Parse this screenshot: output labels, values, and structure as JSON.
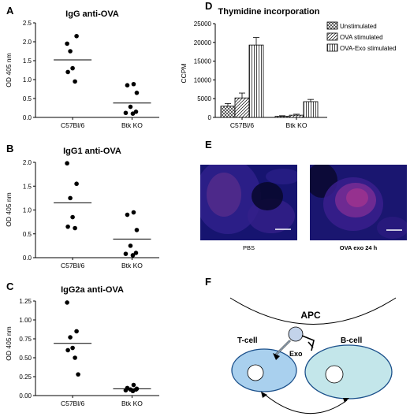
{
  "chart_data": [
    {
      "id": "A",
      "type": "scatter",
      "title": "IgG anti-OVA",
      "ylabel": "OD 405 nm",
      "xlabel": "",
      "categories": [
        "C57Bl/6",
        "Btk KO"
      ],
      "ylim": [
        0,
        2.5
      ],
      "yticks": [
        0.0,
        0.5,
        1.0,
        1.5,
        2.0,
        2.5
      ],
      "yticklabels": [
        "0.0",
        "0.5",
        "1.0",
        "1.5",
        "2.0",
        "2.5"
      ],
      "points": [
        [
          1.95,
          2.15,
          1.75,
          1.3,
          1.2,
          0.95
        ],
        [
          0.88,
          0.85,
          0.65,
          0.28,
          0.15,
          0.12,
          0.1
        ]
      ],
      "means": [
        1.52,
        0.38
      ]
    },
    {
      "id": "B",
      "type": "scatter",
      "title": "IgG1 anti-OVA",
      "ylabel": "OD 405 nm",
      "xlabel": "",
      "categories": [
        "C57Bl/6",
        "Btk KO"
      ],
      "ylim": [
        0,
        2.0
      ],
      "yticks": [
        0.0,
        0.5,
        1.0,
        1.5,
        2.0
      ],
      "yticklabels": [
        "0.0",
        "0.5",
        "1.0",
        "1.5",
        "2.0"
      ],
      "points": [
        [
          1.98,
          1.55,
          1.25,
          0.85,
          0.65,
          0.62
        ],
        [
          0.95,
          0.9,
          0.58,
          0.25,
          0.1,
          0.08,
          0.05
        ]
      ],
      "means": [
        1.15,
        0.39
      ]
    },
    {
      "id": "C",
      "type": "scatter",
      "title": "IgG2a anti-OVA",
      "ylabel": "OD 405 nm",
      "xlabel": "",
      "categories": [
        "C57Bl/6",
        "Btk KO"
      ],
      "ylim": [
        0,
        1.25
      ],
      "yticks": [
        0.0,
        0.25,
        0.5,
        0.75,
        1.0,
        1.25
      ],
      "yticklabels": [
        "0.00",
        "0.25",
        "0.50",
        "0.75",
        "1.00",
        "1.25"
      ],
      "points": [
        [
          1.23,
          0.85,
          0.77,
          0.63,
          0.6,
          0.5,
          0.28
        ],
        [
          0.14,
          0.1,
          0.09,
          0.08,
          0.08,
          0.07,
          0.06
        ]
      ],
      "means": [
        0.69,
        0.09
      ]
    },
    {
      "id": "D",
      "type": "bar",
      "title": "Thymidine incorporation",
      "ylabel": "CCPM",
      "xlabel": "",
      "categories": [
        "C57Bl/6",
        "Btk KO"
      ],
      "ylim": [
        0,
        25000
      ],
      "yticks": [
        0,
        5000,
        10000,
        15000,
        20000,
        25000
      ],
      "yticklabels": [
        "0",
        "5000",
        "10000",
        "15000",
        "20000",
        "25000"
      ],
      "series": [
        {
          "name": "Unstimulated",
          "values": [
            3000,
            300
          ],
          "errors": [
            700,
            150
          ]
        },
        {
          "name": "OVA stimulated",
          "values": [
            5200,
            600
          ],
          "errors": [
            1300,
            250
          ]
        },
        {
          "name": "OVA-Exo stimulated",
          "values": [
            19300,
            4200
          ],
          "errors": [
            2000,
            600
          ]
        }
      ]
    }
  ],
  "panel_letters": [
    "A",
    "B",
    "C",
    "D",
    "E",
    "F"
  ],
  "micrographs": {
    "left_label": "PBS",
    "right_label": "OVA exo 24 h"
  },
  "diagram": {
    "apc": "APC",
    "tcell": "T-cell",
    "bcell": "B-cell",
    "exo": "Exo"
  }
}
